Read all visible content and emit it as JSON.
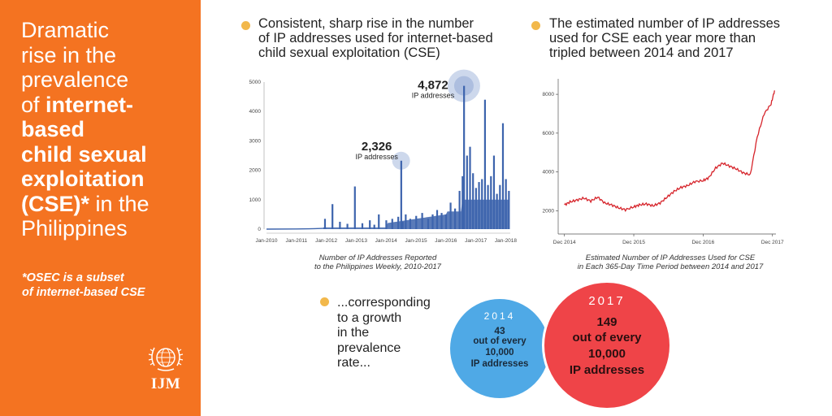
{
  "sidebar": {
    "headline_lines": [
      [
        {
          "t": "Dramatic",
          "b": false
        }
      ],
      [
        {
          "t": "rise in the",
          "b": false
        }
      ],
      [
        {
          "t": "prevalence",
          "b": false
        }
      ],
      [
        {
          "t": "of ",
          "b": false
        },
        {
          "t": "internet-",
          "b": true
        }
      ],
      [
        {
          "t": "based",
          "b": true
        }
      ],
      [
        {
          "t": "child sexual",
          "b": true
        }
      ],
      [
        {
          "t": "exploitation",
          "b": true
        }
      ],
      [
        {
          "t": "(CSE)*",
          "b": true
        },
        {
          "t": " in the",
          "b": false
        }
      ],
      [
        {
          "t": "Philippines",
          "b": false
        }
      ]
    ],
    "footnote_lines": [
      "*OSEC is a subset",
      "of internet-based CSE"
    ],
    "logo_text": "IJM"
  },
  "panel1": {
    "heading_lines": [
      "Consistent, sharp rise in the number",
      "of IP addresses used for internet-based",
      "child sexual exploitation (CSE)"
    ],
    "caption_lines": [
      "Number of IP Addresses Reported",
      "to the Philippines Weekly, 2010-2017"
    ]
  },
  "panel2": {
    "heading_lines": [
      "The estimated number of IP addresses",
      "used for CSE each year more than",
      "tripled between 2014 and 2017"
    ],
    "caption_lines": [
      "Estimated Number of IP Addresses Used for CSE",
      "in Each 365-Day Time Period between 2014 and 2017"
    ]
  },
  "growth": {
    "text_lines": [
      "...corresponding",
      "to a growth",
      "in the",
      "prevalence",
      "rate..."
    ]
  },
  "circle_2014": {
    "year": "2014",
    "num": "43",
    "l1": "out of every",
    "l2": "10,000",
    "l3": "IP addresses",
    "color": "#4fa9e6"
  },
  "circle_2017": {
    "year": "2017",
    "num": "149",
    "l1": "out of every",
    "l2": "10,000",
    "l3": "IP addresses",
    "color": "#ef4448"
  },
  "colors": {
    "orange": "#f47321",
    "bar_blue": "#3d64ad",
    "line_red": "#d6242b",
    "bullet": "#f2b84b",
    "highlight": "#bccbe6"
  },
  "chart_data": [
    {
      "type": "bar",
      "title": "",
      "xlabel": "",
      "ylabel": "",
      "ylim": [
        0,
        5000
      ],
      "yticks": [
        0,
        1000,
        2000,
        3000,
        4000,
        5000
      ],
      "xtick_labels": [
        "Jan-2010",
        "Jan-2011",
        "Jan-2012",
        "Jan-2013",
        "Jan-2014",
        "Jan-2015",
        "Jan-2016",
        "Jan-2017",
        "Jan-2018"
      ],
      "xlim": [
        2010.0,
        2018.15
      ],
      "baseline": [
        [
          2010.0,
          0
        ],
        [
          2011.0,
          5
        ],
        [
          2011.6,
          15
        ],
        [
          2012.0,
          30
        ]
      ],
      "x": [
        2011.95,
        2012.2,
        2012.45,
        2012.7,
        2012.95,
        2013.2,
        2013.45,
        2013.6,
        2013.75,
        2014.0,
        2014.2,
        2014.4,
        2014.5,
        2014.55,
        2014.65,
        2014.8,
        2015.0,
        2015.2,
        2015.4,
        2015.55,
        2015.7,
        2015.85,
        2016.0,
        2016.15,
        2016.3,
        2016.45,
        2016.55,
        2016.6,
        2016.7,
        2016.8,
        2016.9,
        2017.0,
        2017.1,
        2017.2,
        2017.3,
        2017.4,
        2017.5,
        2017.6,
        2017.7,
        2017.8,
        2017.9,
        2018.0,
        2018.1
      ],
      "values": [
        350,
        850,
        250,
        180,
        1450,
        200,
        300,
        150,
        500,
        300,
        350,
        420,
        2326,
        250,
        500,
        350,
        450,
        550,
        350,
        500,
        650,
        550,
        500,
        900,
        700,
        1300,
        1800,
        4872,
        2500,
        2800,
        1900,
        1400,
        1600,
        1700,
        4400,
        1500,
        1800,
        2500,
        1200,
        1500,
        3600,
        1700,
        1300
      ],
      "annotations": [
        {
          "x": 2014.5,
          "value": "2,326",
          "label": "IP addresses"
        },
        {
          "x": 2016.6,
          "value": "4,872",
          "label": "IP addresses"
        }
      ]
    },
    {
      "type": "line",
      "title": "",
      "xlabel": "",
      "ylabel": "",
      "ylim": [
        800,
        8800
      ],
      "yticks": [
        2000,
        4000,
        6000,
        8000
      ],
      "xtick_labels": [
        "Dec 2014",
        "Dec 2015",
        "Dec 2016",
        "Dec 2017"
      ],
      "xlim": [
        2014.83,
        2017.97
      ],
      "series": [
        {
          "x": [
            2014.92,
            2015.0,
            2015.1,
            2015.2,
            2015.3,
            2015.4,
            2015.5,
            2015.6,
            2015.7,
            2015.8,
            2015.92,
            2016.0,
            2016.1,
            2016.2,
            2016.3,
            2016.4,
            2016.5,
            2016.6,
            2016.7,
            2016.8,
            2016.92,
            2017.0,
            2017.1,
            2017.2,
            2017.3,
            2017.4,
            2017.5,
            2017.6,
            2017.7,
            2017.8,
            2017.9,
            2017.95
          ],
          "values": [
            2300,
            2450,
            2550,
            2650,
            2500,
            2700,
            2400,
            2300,
            2150,
            2050,
            2200,
            2300,
            2350,
            2250,
            2400,
            2700,
            3000,
            3200,
            3300,
            3500,
            3550,
            3700,
            4200,
            4450,
            4300,
            4150,
            3950,
            3850,
            5800,
            7000,
            7500,
            8200
          ]
        }
      ]
    }
  ]
}
